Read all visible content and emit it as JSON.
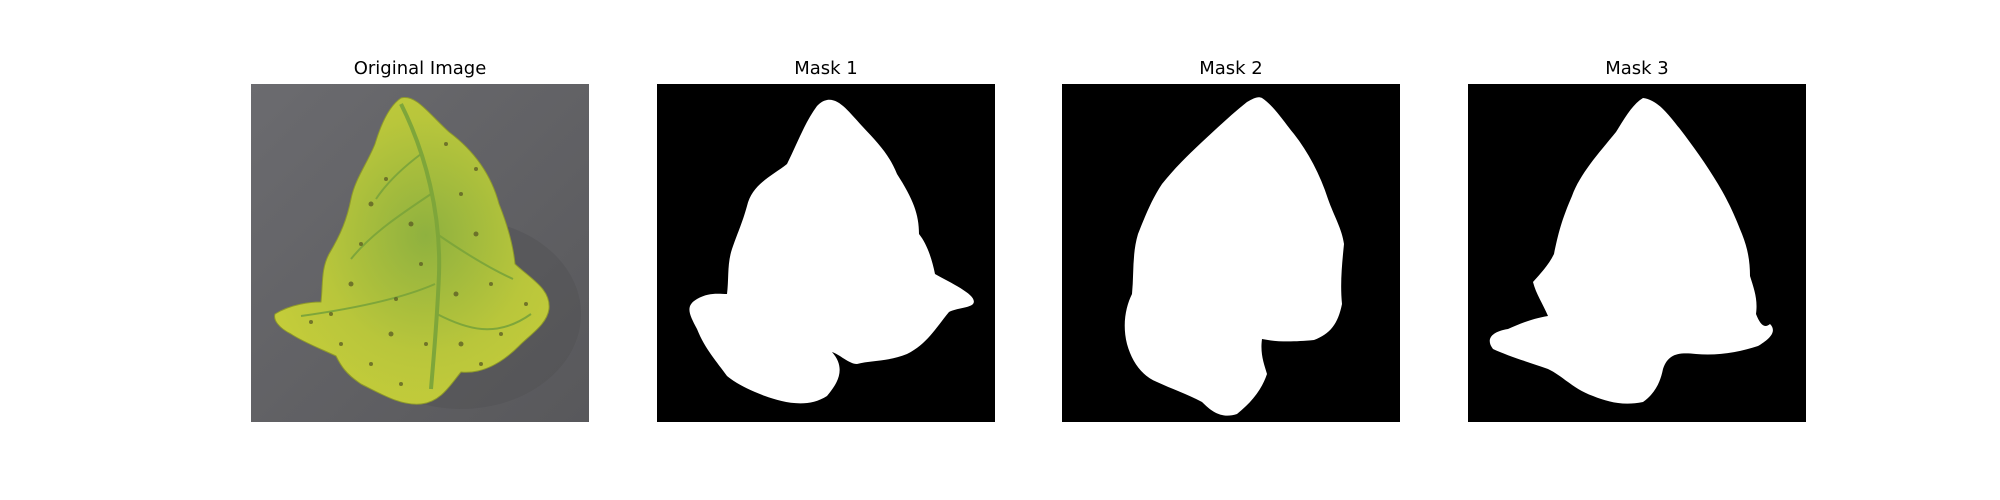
{
  "panels": [
    {
      "title": "Original Image",
      "kind": "photo",
      "background": "#5f5f62",
      "leaf_color": "#b7c43a",
      "vein_color": "#7fa83a"
    },
    {
      "title": "Mask 1",
      "kind": "mask",
      "background": "#000000",
      "mask_color": "#ffffff"
    },
    {
      "title": "Mask 2",
      "kind": "mask",
      "background": "#000000",
      "mask_color": "#ffffff"
    },
    {
      "title": "Mask 3",
      "kind": "mask",
      "background": "#000000",
      "mask_color": "#ffffff"
    }
  ]
}
